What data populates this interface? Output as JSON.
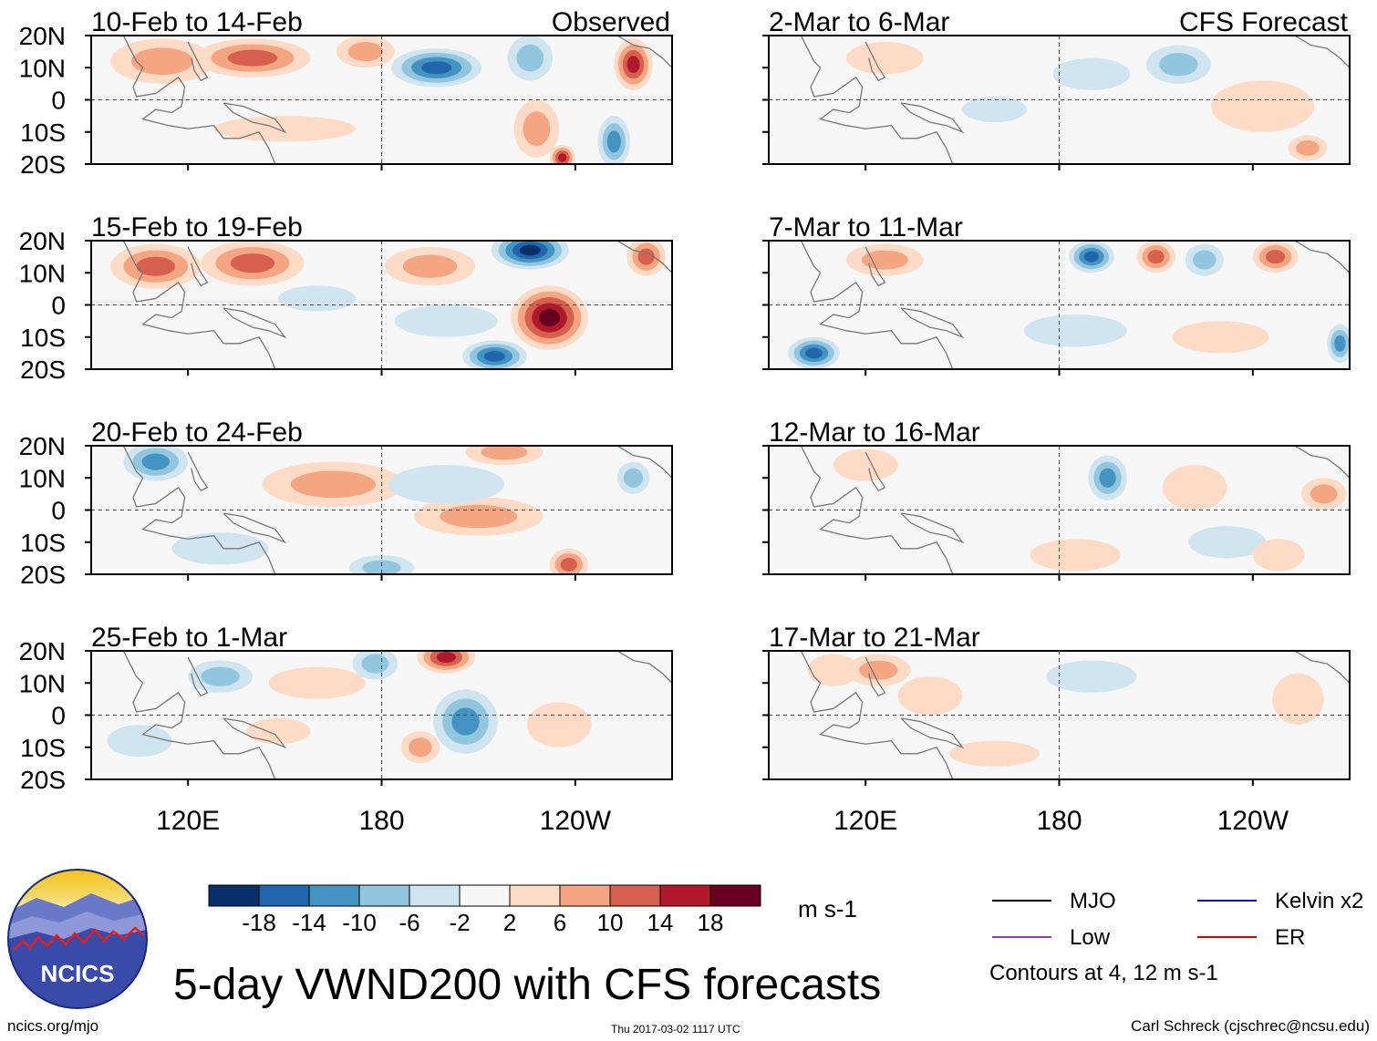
{
  "chart_data": {
    "type": "heatmap",
    "title": "5-day VWND200 with CFS forecasts",
    "variable": "VWND200",
    "units": "m s-1",
    "x_ticks": [
      "120E",
      "180",
      "120W"
    ],
    "x_tick_values": [
      120,
      180,
      240
    ],
    "x_range": [
      90,
      270
    ],
    "y_ticks": [
      "20N",
      "10N",
      "0",
      "10S",
      "20S"
    ],
    "y_tick_values": [
      20,
      10,
      0,
      -10,
      -20
    ],
    "y_range": [
      -20,
      20
    ],
    "columns": [
      {
        "label": "Observed",
        "panels": [
          {
            "period": "10-Feb to 14-Feb",
            "blobs": [
              {
                "lon": 112,
                "lat": 12,
                "v": 9,
                "rx": 16,
                "ry": 7
              },
              {
                "lon": 140,
                "lat": 13,
                "v": 11,
                "rx": 18,
                "ry": 6
              },
              {
                "lon": 175,
                "lat": 15,
                "v": 7,
                "rx": 9,
                "ry": 5
              },
              {
                "lon": 150,
                "lat": -9,
                "v": 6,
                "rx": 22,
                "ry": 4
              },
              {
                "lon": 197,
                "lat": 10,
                "v": -15,
                "rx": 14,
                "ry": 6
              },
              {
                "lon": 226,
                "lat": 13,
                "v": -10,
                "rx": 7,
                "ry": 7
              },
              {
                "lon": 228,
                "lat": -9,
                "v": 10,
                "rx": 7,
                "ry": 9
              },
              {
                "lon": 252,
                "lat": -13,
                "v": -13,
                "rx": 5,
                "ry": 8
              },
              {
                "lon": 258,
                "lat": 11,
                "v": 15,
                "rx": 6,
                "ry": 8
              },
              {
                "lon": 236,
                "lat": -18,
                "v": 15,
                "rx": 4,
                "ry": 4
              }
            ]
          },
          {
            "period": "15-Feb to 19-Feb",
            "blobs": [
              {
                "lon": 110,
                "lat": 12,
                "v": 14,
                "rx": 14,
                "ry": 7
              },
              {
                "lon": 140,
                "lat": 13,
                "v": 11,
                "rx": 16,
                "ry": 7
              },
              {
                "lon": 195,
                "lat": 12,
                "v": 8,
                "rx": 14,
                "ry": 6
              },
              {
                "lon": 226,
                "lat": 17,
                "v": -20,
                "rx": 12,
                "ry": 6
              },
              {
                "lon": 232,
                "lat": -4,
                "v": 19,
                "rx": 12,
                "ry": 10
              },
              {
                "lon": 215,
                "lat": -16,
                "v": -15,
                "rx": 10,
                "ry": 5
              },
              {
                "lon": 200,
                "lat": -5,
                "v": -5,
                "rx": 16,
                "ry": 5
              },
              {
                "lon": 262,
                "lat": 15,
                "v": 14,
                "rx": 6,
                "ry": 6
              },
              {
                "lon": 160,
                "lat": 2,
                "v": -5,
                "rx": 12,
                "ry": 4
              }
            ]
          },
          {
            "period": "20-Feb to 24-Feb",
            "blobs": [
              {
                "lon": 110,
                "lat": 15,
                "v": -12,
                "rx": 10,
                "ry": 6
              },
              {
                "lon": 165,
                "lat": 8,
                "v": 7,
                "rx": 22,
                "ry": 7
              },
              {
                "lon": 210,
                "lat": -2,
                "v": 7,
                "rx": 20,
                "ry": 6
              },
              {
                "lon": 218,
                "lat": 18,
                "v": 10,
                "rx": 12,
                "ry": 4
              },
              {
                "lon": 200,
                "lat": 8,
                "v": -5,
                "rx": 18,
                "ry": 6
              },
              {
                "lon": 180,
                "lat": -18,
                "v": -10,
                "rx": 10,
                "ry": 4
              },
              {
                "lon": 238,
                "lat": -17,
                "v": 12,
                "rx": 6,
                "ry": 5
              },
              {
                "lon": 258,
                "lat": 10,
                "v": -8,
                "rx": 5,
                "ry": 5
              },
              {
                "lon": 130,
                "lat": -12,
                "v": -4,
                "rx": 15,
                "ry": 5
              }
            ]
          },
          {
            "period": "25-Feb to 1-Mar",
            "blobs": [
              {
                "lon": 200,
                "lat": 18,
                "v": 17,
                "rx": 9,
                "ry": 5
              },
              {
                "lon": 178,
                "lat": 16,
                "v": -10,
                "rx": 7,
                "ry": 5
              },
              {
                "lon": 206,
                "lat": -2,
                "v": -12,
                "rx": 10,
                "ry": 10
              },
              {
                "lon": 130,
                "lat": 12,
                "v": -10,
                "rx": 10,
                "ry": 5
              },
              {
                "lon": 160,
                "lat": 10,
                "v": 6,
                "rx": 15,
                "ry": 5
              },
              {
                "lon": 192,
                "lat": -10,
                "v": 9,
                "rx": 6,
                "ry": 5
              },
              {
                "lon": 105,
                "lat": -8,
                "v": -6,
                "rx": 10,
                "ry": 5
              },
              {
                "lon": 235,
                "lat": -3,
                "v": 5,
                "rx": 10,
                "ry": 7
              },
              {
                "lon": 148,
                "lat": -5,
                "v": 4,
                "rx": 10,
                "ry": 4
              }
            ]
          }
        ]
      },
      {
        "label": "CFS Forecast",
        "panels": [
          {
            "period": "2-Mar to 6-Mar",
            "blobs": [
              {
                "lon": 126,
                "lat": 13,
                "v": 6,
                "rx": 12,
                "ry": 5
              },
              {
                "lon": 190,
                "lat": 8,
                "v": -5,
                "rx": 12,
                "ry": 5
              },
              {
                "lon": 217,
                "lat": 11,
                "v": -7,
                "rx": 10,
                "ry": 6
              },
              {
                "lon": 243,
                "lat": -2,
                "v": 5,
                "rx": 16,
                "ry": 8
              },
              {
                "lon": 257,
                "lat": -15,
                "v": 7,
                "rx": 6,
                "ry": 4
              },
              {
                "lon": 160,
                "lat": -3,
                "v": -4,
                "rx": 10,
                "ry": 4
              }
            ]
          },
          {
            "period": "7-Mar to 11-Mar",
            "blobs": [
              {
                "lon": 126,
                "lat": 14,
                "v": 10,
                "rx": 12,
                "ry": 5
              },
              {
                "lon": 190,
                "lat": 15,
                "v": -15,
                "rx": 7,
                "ry": 5
              },
              {
                "lon": 210,
                "lat": 15,
                "v": 12,
                "rx": 6,
                "ry": 5
              },
              {
                "lon": 225,
                "lat": 14,
                "v": -10,
                "rx": 6,
                "ry": 5
              },
              {
                "lon": 247,
                "lat": 15,
                "v": 11,
                "rx": 7,
                "ry": 5
              },
              {
                "lon": 104,
                "lat": -15,
                "v": -15,
                "rx": 8,
                "ry": 5
              },
              {
                "lon": 267,
                "lat": -12,
                "v": -14,
                "rx": 4,
                "ry": 6
              },
              {
                "lon": 185,
                "lat": -8,
                "v": -4,
                "rx": 16,
                "ry": 5
              },
              {
                "lon": 230,
                "lat": -10,
                "v": 5,
                "rx": 15,
                "ry": 5
              }
            ]
          },
          {
            "period": "12-Mar to 16-Mar",
            "blobs": [
              {
                "lon": 120,
                "lat": 14,
                "v": 6,
                "rx": 10,
                "ry": 5
              },
              {
                "lon": 195,
                "lat": 10,
                "v": -12,
                "rx": 6,
                "ry": 7
              },
              {
                "lon": 222,
                "lat": 7,
                "v": 6,
                "rx": 10,
                "ry": 7
              },
              {
                "lon": 262,
                "lat": 5,
                "v": 10,
                "rx": 7,
                "ry": 5
              },
              {
                "lon": 185,
                "lat": -14,
                "v": 4,
                "rx": 14,
                "ry": 5
              },
              {
                "lon": 232,
                "lat": -10,
                "v": -4,
                "rx": 12,
                "ry": 5
              },
              {
                "lon": 248,
                "lat": -14,
                "v": 5,
                "rx": 8,
                "ry": 5
              }
            ]
          },
          {
            "period": "17-Mar to 21-Mar",
            "blobs": [
              {
                "lon": 124,
                "lat": 14,
                "v": 10,
                "rx": 10,
                "ry": 5
              },
              {
                "lon": 110,
                "lat": 14,
                "v": 6,
                "rx": 8,
                "ry": 5
              },
              {
                "lon": 140,
                "lat": 6,
                "v": 5,
                "rx": 10,
                "ry": 6
              },
              {
                "lon": 254,
                "lat": 5,
                "v": 6,
                "rx": 8,
                "ry": 8
              },
              {
                "lon": 190,
                "lat": 12,
                "v": -4,
                "rx": 14,
                "ry": 5
              },
              {
                "lon": 160,
                "lat": -12,
                "v": 4,
                "rx": 14,
                "ry": 4
              }
            ]
          }
        ]
      }
    ],
    "colorbar": {
      "labels": [
        "-18",
        "-14",
        "-10",
        "-6",
        "-2",
        "2",
        "6",
        "10",
        "14",
        "18"
      ],
      "colors": [
        "#08306b",
        "#2166ac",
        "#4393c3",
        "#92c5de",
        "#d1e5f0",
        "#f7f7f7",
        "#fddbc7",
        "#f4a582",
        "#d6604d",
        "#b2182b",
        "#67001f"
      ]
    },
    "legend": [
      {
        "label": "MJO",
        "color": "#000000"
      },
      {
        "label": "Kelvin x2",
        "color": "#0000dd"
      },
      {
        "label": "Low",
        "color": "#9933cc"
      },
      {
        "label": "ER",
        "color": "#dd0000"
      }
    ],
    "contour_note": "Contours at 4, 12 m s-1"
  },
  "footer": {
    "logo_text": "NCICS",
    "site": "ncics.org/mjo",
    "timestamp": "Thu 2017-03-02 1117 UTC",
    "author": "Carl Schreck (cjschrec@ncsu.edu)"
  }
}
